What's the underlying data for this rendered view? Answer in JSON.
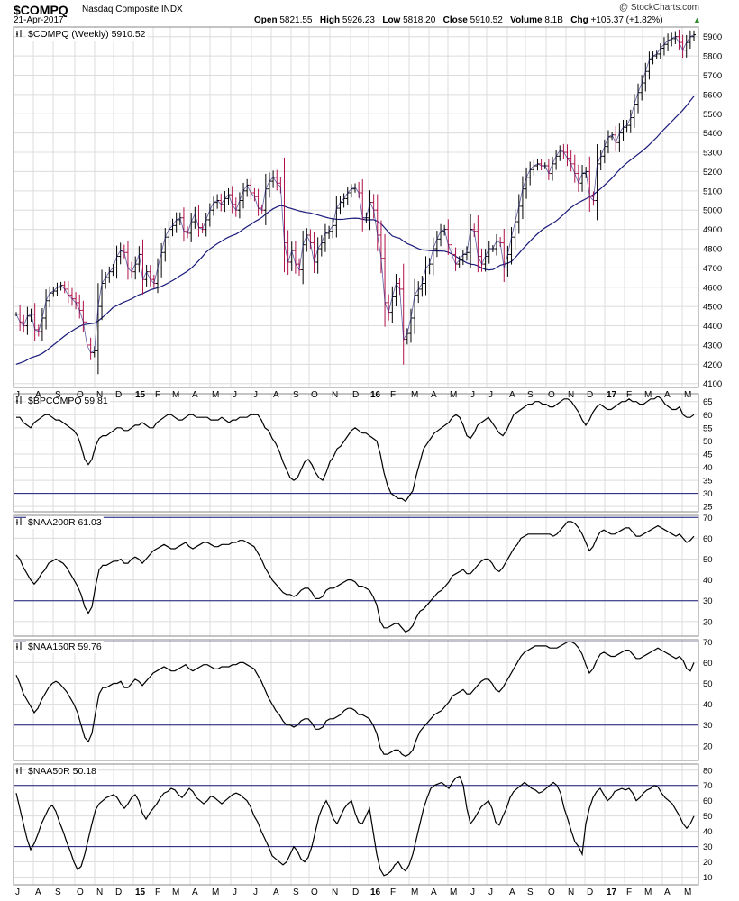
{
  "header": {
    "symbol": "$COMPQ",
    "name": "Nasdaq Composite INDX",
    "date": "21-Apr-2017",
    "credit": "@ StockCharts.com",
    "open_label": "Open",
    "open": "5821.55",
    "high_label": "High",
    "high": "5926.23",
    "low_label": "Low",
    "low": "5818.20",
    "close_label": "Close",
    "close": "5910.52",
    "volume_label": "Volume",
    "volume": "8.1B",
    "chg_label": "Chg",
    "chg": "+105.37 (+1.82%)",
    "up_glyph": "▲"
  },
  "colors": {
    "up_bar": "#000000",
    "down_bar": "#b0104a",
    "ma": "#1a1a7a",
    "line": "#000000",
    "grid": "#dcdcdc",
    "border": "#888888",
    "ref_line": "#1a1a7a"
  },
  "x_axis_labels": [
    "J",
    "A",
    "S",
    "O",
    "N",
    "D",
    "15",
    "F",
    "M",
    "A",
    "M",
    "J",
    "J",
    "A",
    "S",
    "O",
    "N",
    "D",
    "16",
    "F",
    "M",
    "A",
    "M",
    "J",
    "J",
    "A",
    "S",
    "O",
    "N",
    "D",
    "17",
    "F",
    "M",
    "A",
    "M"
  ],
  "chart_data": [
    {
      "type": "ohlc",
      "title": "$COMPQ (Weekly) 5910.52",
      "ylim": [
        4080,
        5950
      ],
      "yticks": [
        4100,
        4200,
        4300,
        4400,
        4500,
        4600,
        4700,
        4800,
        4900,
        5000,
        5100,
        5200,
        5300,
        5400,
        5500,
        5600,
        5700,
        5800,
        5900
      ],
      "close": [
        4460,
        4420,
        4400,
        4450,
        4460,
        4380,
        4370,
        4440,
        4530,
        4570,
        4580,
        4600,
        4610,
        4590,
        4560,
        4540,
        4520,
        4480,
        4420,
        4300,
        4260,
        4270,
        4500,
        4620,
        4650,
        4680,
        4700,
        4760,
        4790,
        4780,
        4700,
        4680,
        4720,
        4770,
        4640,
        4680,
        4640,
        4620,
        4700,
        4780,
        4860,
        4900,
        4920,
        4950,
        4960,
        4890,
        4880,
        4940,
        4980,
        4910,
        4900,
        4950,
        5000,
        5040,
        5050,
        5030,
        5060,
        5080,
        5030,
        5000,
        5050,
        5100,
        5130,
        5090,
        5070,
        5010,
        5000,
        5110,
        5150,
        5170,
        5140,
        5120,
        4830,
        4730,
        4790,
        4720,
        4690,
        4820,
        4870,
        4830,
        4730,
        4800,
        4830,
        4880,
        4890,
        4920,
        5010,
        5040,
        5060,
        5090,
        5110,
        5120,
        5090,
        4960,
        4960,
        5040,
        5000,
        4870,
        4750,
        4520,
        4470,
        4550,
        4620,
        4590,
        4330,
        4360,
        4440,
        4560,
        4590,
        4620,
        4700,
        4720,
        4800,
        4850,
        4890,
        4900,
        4820,
        4770,
        4720,
        4740,
        4770,
        4780,
        4900,
        4890,
        4760,
        4720,
        4760,
        4800,
        4800,
        4840,
        4830,
        4700,
        4770,
        4860,
        4940,
        5020,
        5110,
        5170,
        5210,
        5230,
        5240,
        5230,
        5230,
        5190,
        5240,
        5280,
        5310,
        5300,
        5270,
        5240,
        5190,
        5140,
        5190,
        5200,
        5070,
        5050,
        5240,
        5280,
        5330,
        5380,
        5390,
        5350,
        5400,
        5430,
        5440,
        5480,
        5550,
        5610,
        5660,
        5720,
        5780,
        5800,
        5810,
        5840,
        5860,
        5880,
        5890,
        5900,
        5870,
        5830,
        5870,
        5900,
        5910
      ]
    },
    {
      "type": "line",
      "title": "$BPCOMPQ 59.81",
      "ylim": [
        23,
        68
      ],
      "yticks": [
        25,
        30,
        35,
        40,
        45,
        50,
        55,
        60,
        65
      ],
      "ref_lines": [
        30
      ],
      "values": [
        59,
        59,
        57,
        56,
        55,
        57,
        58,
        59,
        60,
        60,
        59,
        58,
        58,
        57,
        56,
        55,
        54,
        52,
        48,
        43,
        41,
        43,
        48,
        51,
        52,
        52,
        53,
        54,
        55,
        55,
        54,
        54,
        55,
        56,
        56,
        57,
        56,
        55,
        55,
        57,
        58,
        59,
        60,
        60,
        59,
        58,
        58,
        59,
        60,
        60,
        59,
        59,
        59,
        59,
        58,
        58,
        58,
        59,
        58,
        57,
        58,
        58,
        59,
        59,
        59,
        60,
        60,
        60,
        58,
        55,
        54,
        51,
        49,
        46,
        42,
        39,
        36,
        35,
        36,
        39,
        42,
        43,
        41,
        38,
        36,
        35,
        38,
        42,
        44,
        47,
        48,
        50,
        52,
        54,
        55,
        54,
        53,
        53,
        52,
        51,
        50,
        45,
        38,
        33,
        30,
        29,
        28,
        28,
        27,
        29,
        31,
        37,
        42,
        47,
        49,
        51,
        53,
        54,
        55,
        56,
        57,
        59,
        60,
        59,
        56,
        52,
        51,
        53,
        56,
        57,
        58,
        59,
        57,
        55,
        53,
        52,
        54,
        57,
        60,
        61,
        62,
        63,
        64,
        64,
        65,
        65,
        64,
        64,
        63,
        63,
        64,
        65,
        66,
        66,
        65,
        63,
        61,
        58,
        56,
        58,
        61,
        63,
        64,
        63,
        62,
        62,
        63,
        64,
        65,
        65,
        66,
        65,
        65,
        64,
        64,
        65,
        66,
        66,
        67,
        66,
        64,
        63,
        62,
        62,
        63,
        60,
        59,
        59,
        60
      ]
    },
    {
      "type": "line",
      "title": "$NAA200R 61.03",
      "ylim": [
        13,
        71
      ],
      "yticks": [
        20,
        30,
        40,
        50,
        60,
        70
      ],
      "ref_lines": [
        30,
        70
      ],
      "values": [
        52,
        50,
        46,
        43,
        40,
        38,
        40,
        43,
        45,
        48,
        49,
        50,
        49,
        48,
        46,
        43,
        40,
        37,
        33,
        27,
        24,
        27,
        37,
        45,
        47,
        47,
        48,
        49,
        49,
        50,
        48,
        48,
        50,
        51,
        50,
        48,
        50,
        52,
        54,
        55,
        56,
        57,
        56,
        55,
        55,
        56,
        57,
        58,
        56,
        55,
        56,
        57,
        58,
        58,
        57,
        56,
        56,
        57,
        57,
        57,
        58,
        58,
        59,
        59,
        58,
        57,
        56,
        53,
        50,
        46,
        43,
        40,
        38,
        36,
        34,
        33,
        33,
        32,
        33,
        35,
        36,
        36,
        34,
        31,
        31,
        32,
        35,
        36,
        36,
        37,
        38,
        39,
        40,
        40,
        39,
        37,
        37,
        36,
        35,
        32,
        28,
        20,
        17,
        17,
        18,
        19,
        19,
        17,
        15,
        16,
        18,
        22,
        25,
        26,
        28,
        30,
        32,
        34,
        35,
        37,
        39,
        42,
        43,
        44,
        45,
        43,
        43,
        45,
        47,
        49,
        50,
        50,
        48,
        45,
        44,
        46,
        49,
        52,
        55,
        57,
        60,
        61,
        62,
        62,
        62,
        62,
        62,
        62,
        62,
        61,
        62,
        64,
        66,
        68,
        68,
        67,
        65,
        62,
        58,
        54,
        56,
        60,
        63,
        64,
        63,
        62,
        62,
        63,
        64,
        65,
        65,
        63,
        61,
        61,
        62,
        63,
        64,
        65,
        66,
        65,
        64,
        63,
        62,
        61,
        62,
        60,
        58,
        59,
        61
      ]
    },
    {
      "type": "line",
      "title": "$NAA150R 59.76",
      "ylim": [
        13,
        71
      ],
      "yticks": [
        20,
        30,
        40,
        50,
        60,
        70
      ],
      "ref_lines": [
        30,
        70
      ],
      "values": [
        54,
        50,
        45,
        42,
        39,
        36,
        38,
        42,
        45,
        48,
        50,
        51,
        50,
        48,
        46,
        43,
        40,
        36,
        30,
        24,
        22,
        26,
        36,
        45,
        48,
        48,
        49,
        50,
        50,
        51,
        48,
        48,
        50,
        52,
        51,
        49,
        51,
        53,
        55,
        56,
        57,
        58,
        57,
        56,
        56,
        57,
        58,
        59,
        57,
        56,
        57,
        58,
        59,
        59,
        58,
        57,
        57,
        58,
        58,
        58,
        59,
        59,
        60,
        60,
        59,
        58,
        57,
        54,
        51,
        47,
        43,
        40,
        37,
        35,
        32,
        30,
        30,
        29,
        30,
        32,
        33,
        33,
        31,
        28,
        28,
        29,
        32,
        33,
        33,
        34,
        35,
        37,
        38,
        38,
        37,
        35,
        35,
        34,
        33,
        30,
        26,
        19,
        16,
        16,
        17,
        18,
        18,
        16,
        15,
        16,
        18,
        23,
        27,
        29,
        31,
        33,
        35,
        36,
        37,
        39,
        41,
        44,
        45,
        46,
        47,
        45,
        45,
        47,
        49,
        51,
        52,
        52,
        50,
        47,
        46,
        48,
        51,
        54,
        57,
        60,
        63,
        65,
        66,
        67,
        68,
        68,
        68,
        68,
        67,
        67,
        67,
        68,
        69,
        70,
        70,
        69,
        67,
        64,
        59,
        55,
        57,
        61,
        64,
        65,
        64,
        63,
        63,
        64,
        65,
        66,
        66,
        64,
        62,
        62,
        63,
        64,
        65,
        66,
        67,
        66,
        65,
        64,
        63,
        62,
        63,
        61,
        57,
        56,
        60
      ]
    },
    {
      "type": "line",
      "title": "$NAA50R 50.18",
      "ylim": [
        5,
        84
      ],
      "yticks": [
        10,
        20,
        30,
        40,
        50,
        60,
        70,
        80
      ],
      "ref_lines": [
        30,
        70
      ],
      "values": [
        65,
        55,
        45,
        35,
        28,
        32,
        38,
        45,
        50,
        55,
        57,
        53,
        46,
        40,
        33,
        27,
        20,
        15,
        17,
        25,
        35,
        45,
        54,
        58,
        60,
        62,
        63,
        64,
        62,
        58,
        55,
        58,
        62,
        64,
        60,
        52,
        48,
        52,
        55,
        58,
        62,
        65,
        66,
        68,
        67,
        64,
        62,
        65,
        68,
        66,
        62,
        60,
        58,
        60,
        63,
        62,
        60,
        58,
        60,
        62,
        64,
        65,
        64,
        62,
        60,
        56,
        50,
        46,
        40,
        35,
        30,
        24,
        22,
        20,
        18,
        20,
        25,
        30,
        27,
        22,
        20,
        23,
        30,
        40,
        50,
        56,
        60,
        55,
        48,
        45,
        50,
        55,
        58,
        60,
        52,
        46,
        45,
        50,
        55,
        40,
        25,
        15,
        11,
        12,
        14,
        18,
        20,
        16,
        14,
        18,
        25,
        35,
        45,
        55,
        62,
        68,
        70,
        71,
        72,
        70,
        68,
        72,
        75,
        76,
        70,
        55,
        45,
        48,
        52,
        56,
        58,
        60,
        55,
        46,
        44,
        50,
        55,
        62,
        66,
        68,
        70,
        72,
        70,
        68,
        67,
        65,
        66,
        68,
        70,
        72,
        70,
        65,
        55,
        48,
        40,
        33,
        30,
        25,
        45,
        55,
        62,
        66,
        68,
        64,
        60,
        62,
        66,
        67,
        68,
        67,
        68,
        65,
        60,
        62,
        65,
        67,
        68,
        70,
        69,
        65,
        62,
        60,
        58,
        54,
        50,
        45,
        42,
        45,
        50
      ]
    }
  ]
}
